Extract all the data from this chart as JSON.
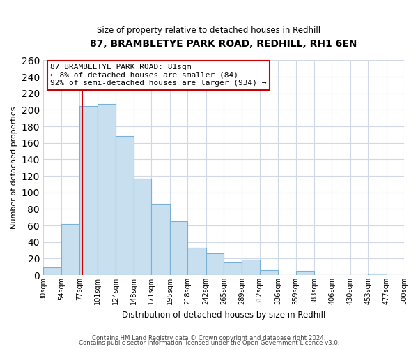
{
  "title": "87, BRAMBLETYE PARK ROAD, REDHILL, RH1 6EN",
  "subtitle": "Size of property relative to detached houses in Redhill",
  "xlabel": "Distribution of detached houses by size in Redhill",
  "ylabel": "Number of detached properties",
  "bar_edges": [
    30,
    54,
    77,
    101,
    124,
    148,
    171,
    195,
    218,
    242,
    265,
    289,
    312,
    336,
    359,
    383,
    406,
    430,
    453,
    477,
    500
  ],
  "bar_heights": [
    9,
    62,
    205,
    207,
    168,
    117,
    86,
    65,
    33,
    26,
    15,
    19,
    6,
    0,
    5,
    0,
    0,
    0,
    2,
    0,
    0
  ],
  "bar_color": "#c8dff0",
  "bar_edge_color": "#7ab0d4",
  "property_line_x": 81,
  "property_line_color": "#cc0000",
  "annotation_line1": "87 BRAMBLETYE PARK ROAD: 81sqm",
  "annotation_line2": "← 8% of detached houses are smaller (84)",
  "annotation_line3": "92% of semi-detached houses are larger (934) →",
  "ylim": [
    0,
    260
  ],
  "yticks": [
    0,
    20,
    40,
    60,
    80,
    100,
    120,
    140,
    160,
    180,
    200,
    220,
    240,
    260
  ],
  "tick_labels": [
    "30sqm",
    "54sqm",
    "77sqm",
    "101sqm",
    "124sqm",
    "148sqm",
    "171sqm",
    "195sqm",
    "218sqm",
    "242sqm",
    "265sqm",
    "289sqm",
    "312sqm",
    "336sqm",
    "359sqm",
    "383sqm",
    "406sqm",
    "430sqm",
    "453sqm",
    "477sqm",
    "500sqm"
  ],
  "footer_line1": "Contains HM Land Registry data © Crown copyright and database right 2024.",
  "footer_line2": "Contains public sector information licensed under the Open Government Licence v3.0.",
  "background_color": "#ffffff",
  "grid_color": "#d0d8e8"
}
